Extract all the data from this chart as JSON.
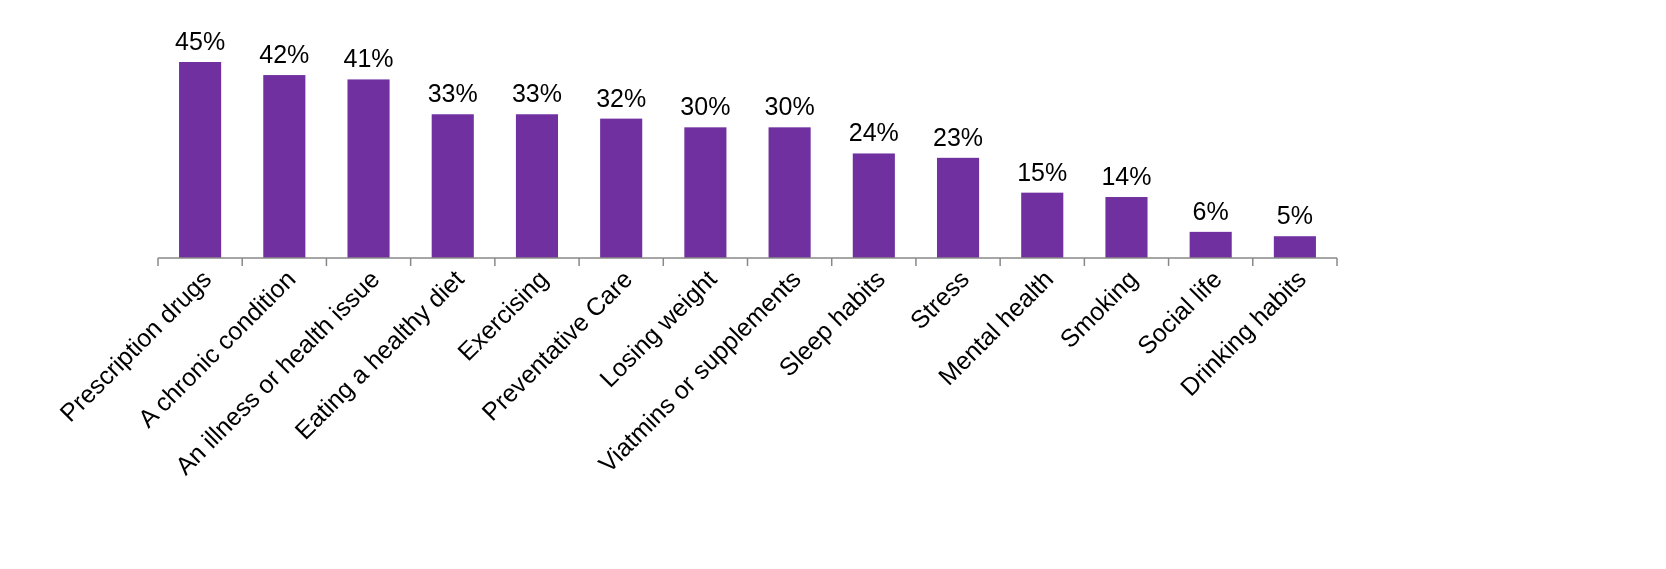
{
  "chart_data": {
    "type": "bar",
    "categories": [
      "Prescription drugs",
      "A chronic condition",
      "An illness or health issue",
      "Eating a healthy diet",
      "Exercising",
      "Preventative Care",
      "Losing weight",
      "Viatmins or supplements",
      "Sleep habits",
      "Stress",
      "Mental health",
      "Smoking",
      "Social life",
      "Drinking habits"
    ],
    "values": [
      45,
      42,
      41,
      33,
      33,
      32,
      30,
      30,
      24,
      23,
      15,
      14,
      6,
      5
    ],
    "value_labels": [
      "45%",
      "42%",
      "41%",
      "33%",
      "33%",
      "32%",
      "30%",
      "30%",
      "24%",
      "23%",
      "15%",
      "14%",
      "6%",
      "5%"
    ],
    "color": "#7030a0"
  }
}
